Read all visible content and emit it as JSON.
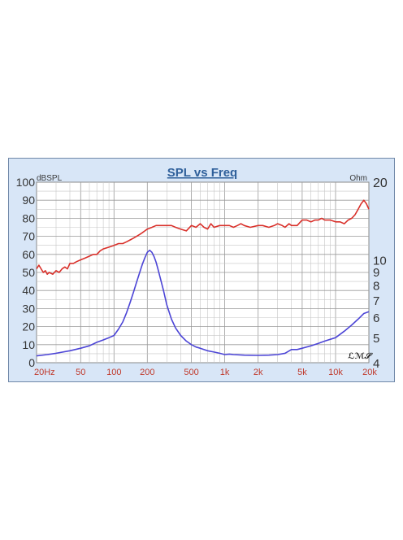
{
  "chart_data": {
    "type": "line",
    "title": "SPL vs Freq",
    "ylabel_left": "dBSPL",
    "ylabel_right": "Ohm",
    "watermark": "LMS",
    "x_scale": "log",
    "xlim": [
      20,
      20000
    ],
    "ylim": [
      0,
      100
    ],
    "y2lim": [
      4,
      20
    ],
    "y2_scale": "log",
    "grid": true,
    "x_ticks": [
      {
        "value": 20,
        "label": "20Hz"
      },
      {
        "value": 50,
        "label": "50"
      },
      {
        "value": 100,
        "label": "100"
      },
      {
        "value": 200,
        "label": "200"
      },
      {
        "value": 500,
        "label": "500"
      },
      {
        "value": 1000,
        "label": "1k"
      },
      {
        "value": 2000,
        "label": "2k"
      },
      {
        "value": 5000,
        "label": "5k"
      },
      {
        "value": 10000,
        "label": "10k"
      },
      {
        "value": 20000,
        "label": "20k"
      }
    ],
    "y_ticks": [
      {
        "value": 0,
        "label": "0"
      },
      {
        "value": 10,
        "label": "10"
      },
      {
        "value": 20,
        "label": "20"
      },
      {
        "value": 30,
        "label": "30"
      },
      {
        "value": 40,
        "label": "40"
      },
      {
        "value": 50,
        "label": "50"
      },
      {
        "value": 60,
        "label": "60"
      },
      {
        "value": 70,
        "label": "70"
      },
      {
        "value": 80,
        "label": "80"
      },
      {
        "value": 90,
        "label": "90"
      },
      {
        "value": 100,
        "label": "100"
      }
    ],
    "y2_ticks": [
      {
        "value": 4,
        "label": "4"
      },
      {
        "value": 5,
        "label": "5"
      },
      {
        "value": 6,
        "label": "6"
      },
      {
        "value": 7,
        "label": "7"
      },
      {
        "value": 8,
        "label": "8"
      },
      {
        "value": 9,
        "label": "9"
      },
      {
        "value": 10,
        "label": "10"
      },
      {
        "value": 20,
        "label": "20"
      }
    ],
    "series": [
      {
        "color": "#d9312b",
        "axis": "left",
        "x": [
          20,
          21,
          22,
          23,
          24,
          25,
          26,
          28,
          30,
          32,
          34,
          36,
          38,
          40,
          43,
          46,
          50,
          55,
          60,
          65,
          70,
          75,
          80,
          90,
          100,
          110,
          120,
          130,
          140,
          150,
          160,
          170,
          180,
          190,
          200,
          220,
          240,
          260,
          280,
          300,
          330,
          360,
          400,
          450,
          500,
          550,
          600,
          650,
          700,
          750,
          800,
          900,
          1000,
          1100,
          1200,
          1300,
          1400,
          1500,
          1700,
          2000,
          2200,
          2500,
          2800,
          3000,
          3300,
          3500,
          3800,
          4000,
          4500,
          5000,
          5500,
          6000,
          6500,
          7000,
          7500,
          8000,
          8500,
          9000,
          10000,
          11000,
          12000,
          13000,
          14000,
          15000,
          16000,
          17000,
          18000,
          19000,
          20000
        ],
        "values": [
          52,
          54,
          52,
          50,
          51,
          49,
          50,
          49,
          51,
          50,
          52,
          53,
          52,
          55,
          55,
          56,
          57,
          58,
          59,
          60,
          60,
          62,
          63,
          64,
          65,
          66,
          66,
          67,
          68,
          69,
          70,
          71,
          72,
          73,
          74,
          75,
          76,
          76,
          76,
          76,
          76,
          75,
          74,
          73,
          76,
          75,
          77,
          75,
          74,
          77,
          75,
          76,
          76,
          76,
          75,
          76,
          77,
          76,
          75,
          76,
          76,
          75,
          76,
          77,
          76,
          75,
          77,
          76,
          76,
          79,
          79,
          78,
          79,
          79,
          80,
          79,
          79,
          79,
          78,
          78,
          77,
          79,
          80,
          82,
          85,
          88,
          90,
          88,
          85
        ]
      },
      {
        "color": "#4c45d6",
        "axis": "right",
        "x": [
          20,
          25,
          30,
          40,
          50,
          60,
          70,
          80,
          90,
          100,
          110,
          120,
          130,
          140,
          150,
          160,
          170,
          180,
          190,
          200,
          210,
          220,
          230,
          240,
          250,
          260,
          280,
          300,
          330,
          360,
          400,
          450,
          500,
          550,
          600,
          700,
          800,
          900,
          1000,
          1100,
          1200,
          1500,
          2000,
          2500,
          3000,
          3500,
          4000,
          4500,
          5000,
          6000,
          7000,
          8000,
          10000,
          12000,
          14000,
          16000,
          18000,
          20000
        ],
        "values": [
          4.25,
          4.3,
          4.35,
          4.45,
          4.55,
          4.65,
          4.8,
          4.9,
          5.0,
          5.1,
          5.4,
          5.75,
          6.25,
          6.85,
          7.5,
          8.2,
          8.9,
          9.6,
          10.2,
          10.7,
          10.9,
          10.7,
          10.3,
          9.8,
          9.2,
          8.6,
          7.6,
          6.7,
          5.9,
          5.45,
          5.1,
          4.85,
          4.7,
          4.6,
          4.55,
          4.45,
          4.4,
          4.35,
          4.3,
          4.32,
          4.3,
          4.28,
          4.27,
          4.28,
          4.3,
          4.35,
          4.5,
          4.5,
          4.55,
          4.65,
          4.75,
          4.85,
          5.0,
          5.3,
          5.6,
          5.9,
          6.2,
          6.3
        ]
      }
    ]
  }
}
